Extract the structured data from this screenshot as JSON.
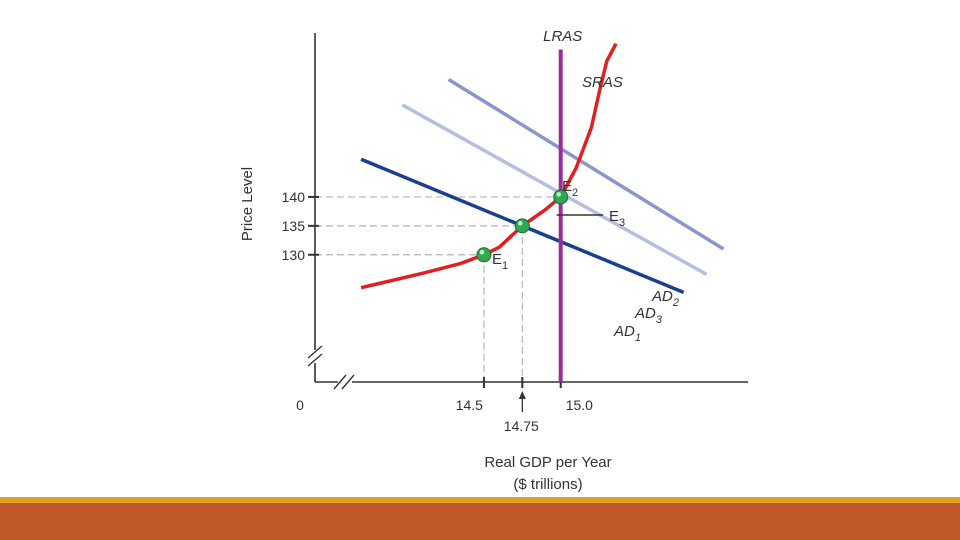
{
  "chart_data": {
    "type": "line",
    "title": "",
    "xlabel": "Real GDP per Year",
    "xlabel_unit": "($ trillions)",
    "ylabel": "Price Level",
    "x_ticks": [
      {
        "value": 14.5,
        "label": "14.5"
      },
      {
        "value": 14.75,
        "label": "14.75"
      },
      {
        "value": 15.0,
        "label": "15.0"
      }
    ],
    "y_ticks": [
      {
        "value": 130,
        "label": "130"
      },
      {
        "value": 135,
        "label": "135"
      },
      {
        "value": 140,
        "label": "140"
      }
    ],
    "origin_label": "0",
    "xlim": [
      13.4,
      16.2
    ],
    "ylim": [
      108,
      168
    ],
    "series": [
      {
        "name": "LRAS",
        "color": "#9b2d9b",
        "x": [
          15.0,
          15.0
        ],
        "y": [
          108,
          165.5
        ]
      },
      {
        "name": "SRAS",
        "color": "#e02020",
        "x": [
          13.7,
          14.1,
          14.35,
          14.5,
          14.6,
          14.75,
          14.9,
          15.0,
          15.1,
          15.2,
          15.25,
          15.3,
          15.36
        ],
        "y": [
          124.3,
          126.8,
          128.5,
          130,
          131.3,
          135,
          137.8,
          140,
          145,
          152,
          158,
          163.5,
          166.5
        ]
      },
      {
        "name": "AD1",
        "label_main": "AD",
        "label_sub": "1",
        "color": "#1a3f8f",
        "x": [
          13.7,
          15.8
        ],
        "y": [
          146.5,
          123.5
        ]
      },
      {
        "name": "AD3",
        "label_main": "AD",
        "label_sub": "3",
        "color": "#b5bde0",
        "x": [
          13.97,
          15.95
        ],
        "y": [
          155.9,
          126.6
        ]
      },
      {
        "name": "AD2",
        "label_main": "AD",
        "label_sub": "2",
        "color": "#8c94cc",
        "x": [
          14.27,
          16.06
        ],
        "y": [
          160.3,
          131
        ]
      }
    ],
    "points": [
      {
        "name": "E1",
        "label_main": "E",
        "label_sub": "1",
        "x": 14.5,
        "y": 130
      },
      {
        "name": "E2",
        "label_main": "E",
        "label_sub": "2",
        "x": 15.0,
        "y": 140
      },
      {
        "name": "E3",
        "label_main": "E",
        "label_sub": "3",
        "x": 14.75,
        "y": 135
      }
    ],
    "colors": {
      "point": "#2fa84f",
      "grid": "#b3b3b3",
      "axis": "#333333"
    }
  },
  "footer": {
    "gold": "#e0a020",
    "rust": "#c05a28"
  }
}
